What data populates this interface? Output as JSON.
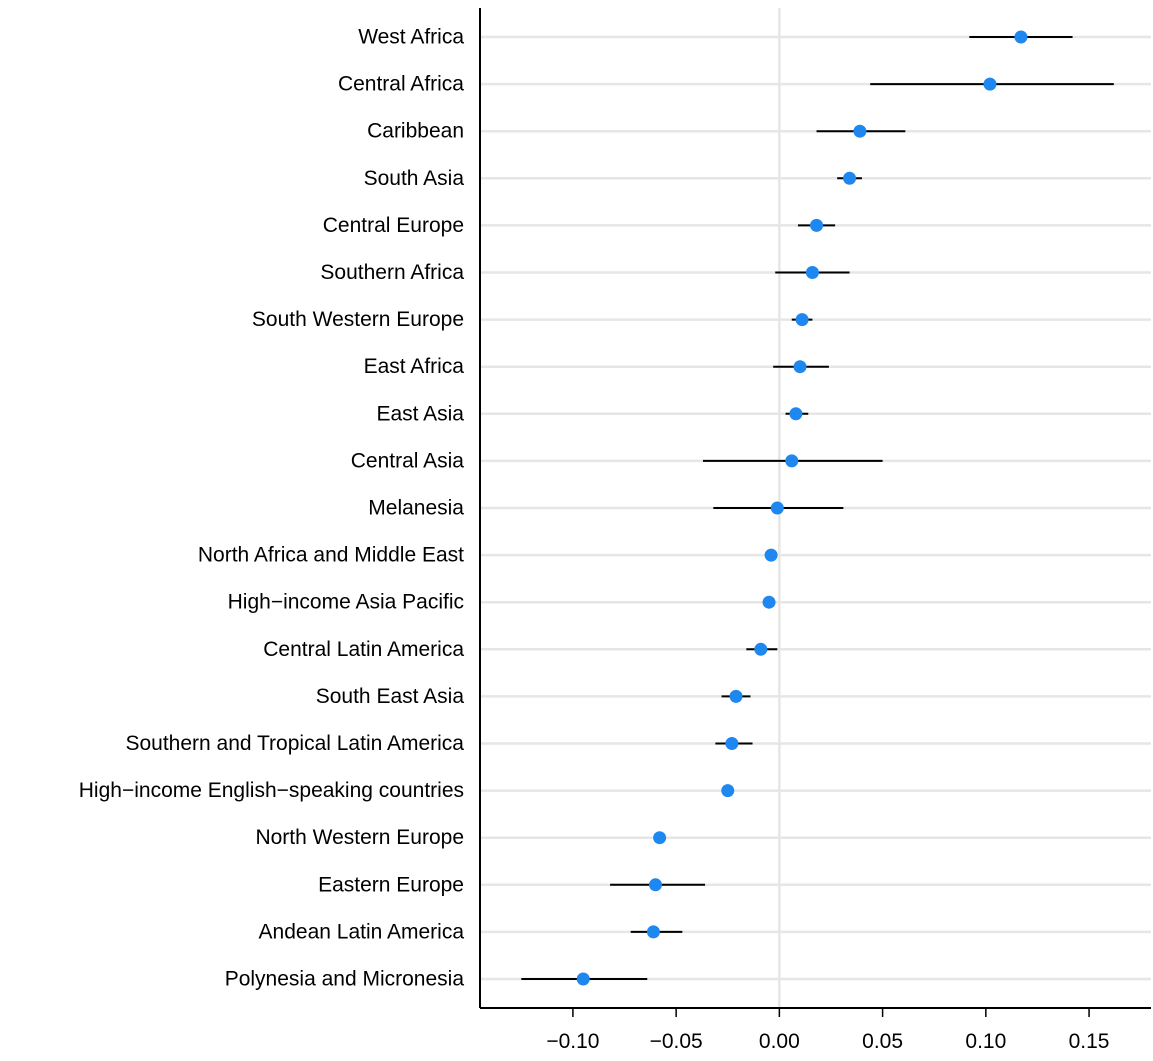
{
  "chart_data": {
    "type": "forest",
    "title": "",
    "xlabel": "",
    "ylabel": "",
    "xlim": [
      -0.145,
      0.18
    ],
    "xticks": [
      -0.1,
      -0.05,
      0.0,
      0.05,
      0.1,
      0.15
    ],
    "xtick_labels": [
      "−0.10",
      "−0.05",
      "0.00",
      "0.05",
      "0.10",
      "0.15"
    ],
    "reference_line_x": 0,
    "grid": "horizontal",
    "point_color": "#1e88f0",
    "ci_color": "#000000",
    "categories": [
      "West Africa",
      "Central Africa",
      "Caribbean",
      "South Asia",
      "Central Europe",
      "Southern Africa",
      "South Western Europe",
      "East Africa",
      "East Asia",
      "Central Asia",
      "Melanesia",
      "North Africa and Middle East",
      "High−income Asia Pacific",
      "Central Latin America",
      "South East Asia",
      "Southern and Tropical Latin America",
      "High−income English−speaking countries",
      "North Western Europe",
      "Eastern Europe",
      "Andean Latin America",
      "Polynesia and Micronesia"
    ],
    "estimates": [
      0.117,
      0.102,
      0.039,
      0.034,
      0.018,
      0.016,
      0.011,
      0.01,
      0.008,
      0.006,
      -0.001,
      -0.004,
      -0.005,
      -0.009,
      -0.021,
      -0.023,
      -0.025,
      -0.058,
      -0.06,
      -0.061,
      -0.095
    ],
    "ci_low": [
      0.092,
      0.044,
      0.018,
      0.028,
      0.009,
      -0.002,
      0.006,
      -0.003,
      0.003,
      -0.037,
      -0.032,
      -0.006,
      -0.008,
      -0.016,
      -0.028,
      -0.031,
      -0.027,
      -0.06,
      -0.082,
      -0.072,
      -0.125
    ],
    "ci_high": [
      0.142,
      0.162,
      0.061,
      0.04,
      0.027,
      0.034,
      0.016,
      0.024,
      0.014,
      0.05,
      0.031,
      -0.002,
      -0.002,
      -0.001,
      -0.014,
      -0.013,
      -0.023,
      -0.056,
      -0.036,
      -0.047,
      -0.064
    ]
  }
}
